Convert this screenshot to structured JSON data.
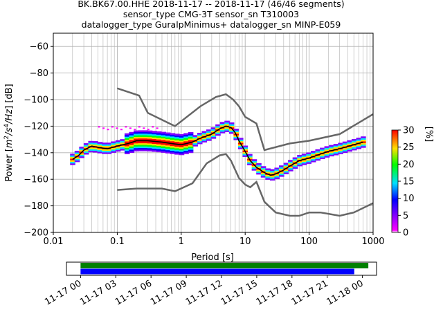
{
  "header": {
    "line1": "BK.BK67.00.HHE   2018-11-17 -- 2018-11-17  (46/46 segments)",
    "line2": "sensor_type CMG-3T sensor_sn T310003",
    "line3": "datalogger_type GuralpMinimus+ datalogger_sn MINP-E059"
  },
  "chart_data": [
    {
      "type": "heatmap",
      "title": "BK.BK67.00.HHE   2018-11-17 -- 2018-11-17  (46/46 segments)",
      "xlabel": "Period [s]",
      "ylabel": "Power [m²/s⁴/Hz] [dB]",
      "ylabel_parts": {
        "prefix": "Power [",
        "m": "m",
        "sup2": "2",
        "slash_s": "/s",
        "sup4": "4",
        "slash_hz": "/Hz",
        "suffix": "] [dB]"
      },
      "xscale": "log",
      "xlim": [
        0.01,
        1000
      ],
      "ylim": [
        -200,
        -50
      ],
      "x_ticks": [
        0.01,
        0.1,
        1,
        10,
        100,
        1000
      ],
      "x_tick_labels": [
        "0.01",
        "0.1",
        "1",
        "10",
        "100",
        "1000"
      ],
      "y_ticks": [
        -200,
        -180,
        -160,
        -140,
        -120,
        -100,
        -80,
        -60
      ],
      "y_tick_labels": [
        "−200",
        "−180",
        "−160",
        "−140",
        "−120",
        "−100",
        "−80",
        "−60"
      ],
      "grid": true,
      "colorbar": {
        "label": "[%]",
        "range": [
          0,
          30
        ],
        "ticks": [
          0,
          5,
          10,
          15,
          20,
          25,
          30
        ],
        "tick_labels": [
          "0",
          "5",
          "10",
          "15",
          "20",
          "25",
          "30"
        ]
      },
      "mode_curve": {
        "x": [
          0.02,
          0.025,
          0.03,
          0.04,
          0.05,
          0.07,
          0.1,
          0.15,
          0.2,
          0.3,
          0.5,
          0.7,
          1,
          1.5,
          2,
          3,
          4,
          5,
          6,
          7,
          8,
          10,
          12,
          15,
          20,
          25,
          30,
          40,
          50,
          70,
          100,
          150,
          200,
          300,
          500,
          700
        ],
        "y": [
          -145,
          -142,
          -138,
          -135,
          -136,
          -137,
          -135,
          -133,
          -131,
          -131,
          -132,
          -133,
          -134,
          -132,
          -129,
          -126,
          -122,
          -120,
          -121,
          -125,
          -131,
          -139,
          -146,
          -151,
          -155,
          -157,
          -156,
          -153,
          -150,
          -146,
          -144,
          -141,
          -139,
          -137,
          -134,
          -132
        ]
      },
      "nlnm": {
        "x": [
          0.1,
          0.2,
          0.5,
          0.8,
          1.5,
          2.5,
          4,
          5,
          6,
          8,
          10,
          12,
          15,
          20,
          30,
          50,
          70,
          100,
          150,
          200,
          300,
          500,
          1000
        ],
        "y": [
          -168,
          -167,
          -167,
          -169,
          -163,
          -148,
          -142,
          -141,
          -146,
          -159,
          -164,
          -166,
          -162,
          -177,
          -185,
          -187.5,
          -187.5,
          -185,
          -185,
          -186,
          -187.5,
          -185,
          -178
        ]
      },
      "nhnm": {
        "x": [
          0.1,
          0.22,
          0.3,
          0.8,
          2,
          3.5,
          5,
          6.5,
          8,
          10,
          15,
          20,
          50,
          100,
          300,
          1000
        ],
        "y": [
          -91.5,
          -97,
          -110,
          -120,
          -105,
          -98,
          -96,
          -100,
          -105,
          -113,
          -118,
          -138,
          -133,
          -131,
          -126,
          -111
        ]
      }
    },
    {
      "type": "bar",
      "title": "",
      "x_tick_labels": [
        "11-17 00",
        "11-17 03",
        "11-17 06",
        "11-17 09",
        "11-17 12",
        "11-17 15",
        "11-17 18",
        "11-17 21",
        "11-18 00"
      ],
      "xlim_hours": [
        -1.2,
        25.2
      ],
      "series": [
        {
          "color": "#008000",
          "start_hour": 0,
          "end_hour": 24.5
        },
        {
          "color": "#0000ff",
          "start_hour": 0,
          "end_hour": 23.3
        }
      ]
    }
  ],
  "colors": {
    "nhnm": "#666666",
    "nlnm": "#666666",
    "mode": "#000000",
    "grid": "#b0b0b0",
    "green": "#008000",
    "blue": "#0000ff"
  }
}
